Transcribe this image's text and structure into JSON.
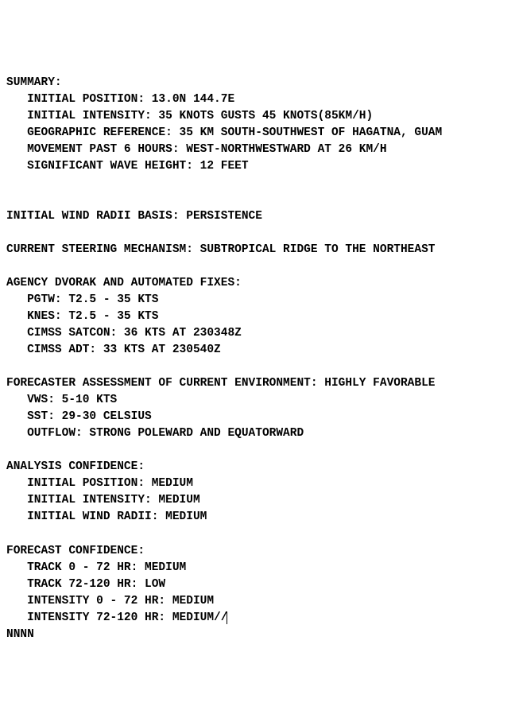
{
  "summary": {
    "heading": "SUMMARY:",
    "initial_position": "   INITIAL POSITION: 13.0N 144.7E",
    "initial_intensity": "   INITIAL INTENSITY: 35 KNOTS GUSTS 45 KNOTS(85KM/H)",
    "geographic_reference": "   GEOGRAPHIC REFERENCE: 35 KM SOUTH-SOUTHWEST OF HAGATNA, GUAM",
    "movement": "   MOVEMENT PAST 6 HOURS: WEST-NORTHWESTWARD AT 26 KM/H",
    "wave_height": "   SIGNIFICANT WAVE HEIGHT: 12 FEET"
  },
  "wind_radii_basis": "INITIAL WIND RADII BASIS: PERSISTENCE",
  "steering": "CURRENT STEERING MECHANISM: SUBTROPICAL RIDGE TO THE NORTHEAST",
  "dvorak": {
    "heading": "AGENCY DVORAK AND AUTOMATED FIXES:",
    "pgtw": "   PGTW: T2.5 - 35 KTS",
    "knes": "   KNES: T2.5 - 35 KTS",
    "satcon": "   CIMSS SATCON: 36 KTS AT 230348Z",
    "adt": "   CIMSS ADT: 33 KTS AT 230540Z"
  },
  "environment": {
    "heading": "FORECASTER ASSESSMENT OF CURRENT ENVIRONMENT: HIGHLY FAVORABLE",
    "vws": "   VWS: 5-10 KTS",
    "sst": "   SST: 29-30 CELSIUS",
    "outflow": "   OUTFLOW: STRONG POLEWARD AND EQUATORWARD"
  },
  "analysis_confidence": {
    "heading": "ANALYSIS CONFIDENCE:",
    "pos": "   INITIAL POSITION: MEDIUM",
    "intensity": "   INITIAL INTENSITY: MEDIUM",
    "radii": "   INITIAL WIND RADII: MEDIUM"
  },
  "forecast_confidence": {
    "heading": "FORECAST CONFIDENCE:",
    "track1": "   TRACK 0 - 72 HR: MEDIUM",
    "track2": "   TRACK 72-120 HR: LOW",
    "int1": "   INTENSITY 0 - 72 HR: MEDIUM",
    "int2": "   INTENSITY 72-120 HR: MEDIUM//"
  },
  "end": "NNNN"
}
